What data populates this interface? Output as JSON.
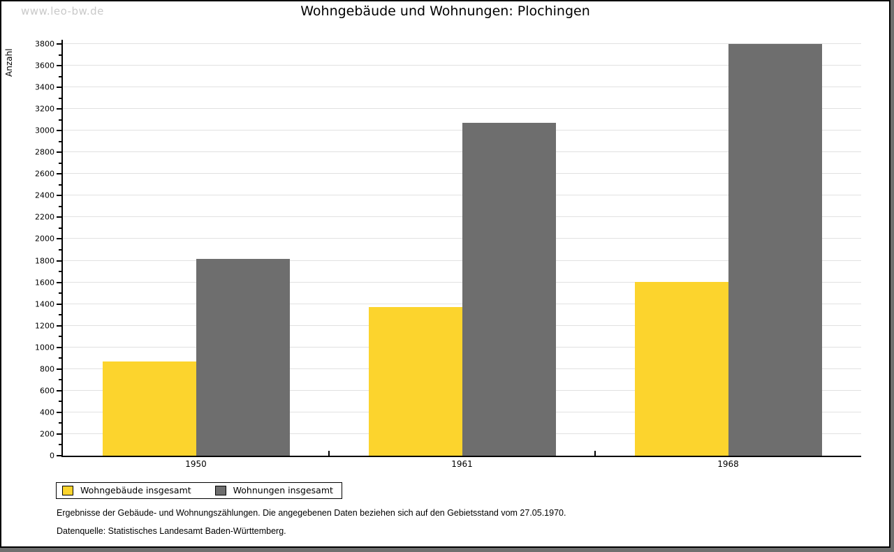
{
  "watermark": "www.leo-bw.de",
  "title": "Wohngebäude und Wohnungen: Plochingen",
  "chart_data": {
    "type": "bar",
    "title": "Wohngebäude und Wohnungen: Plochingen",
    "xlabel": "",
    "ylabel": "Anzahl",
    "categories": [
      "1950",
      "1961",
      "1968"
    ],
    "series": [
      {
        "name": "Wohngebäude insgesamt",
        "color": "#FCD42D",
        "values": [
          870,
          1375,
          1605
        ]
      },
      {
        "name": "Wohnungen insgesamt",
        "color": "#6E6E6E",
        "values": [
          1815,
          3070,
          3800
        ]
      }
    ],
    "ylim": [
      0,
      3800
    ],
    "ytick_step": 200,
    "minor_tick_step": 100,
    "grid": "horizontal-major",
    "legend_position": "bottom-left"
  },
  "footer": {
    "note": "Ergebnisse der Gebäude- und Wohnungszählungen. Die angegebenen Daten beziehen sich auf den Gebietsstand vom 27.05.1970.",
    "source": "Datenquelle: Statistisches Landesamt Baden-Württemberg."
  }
}
